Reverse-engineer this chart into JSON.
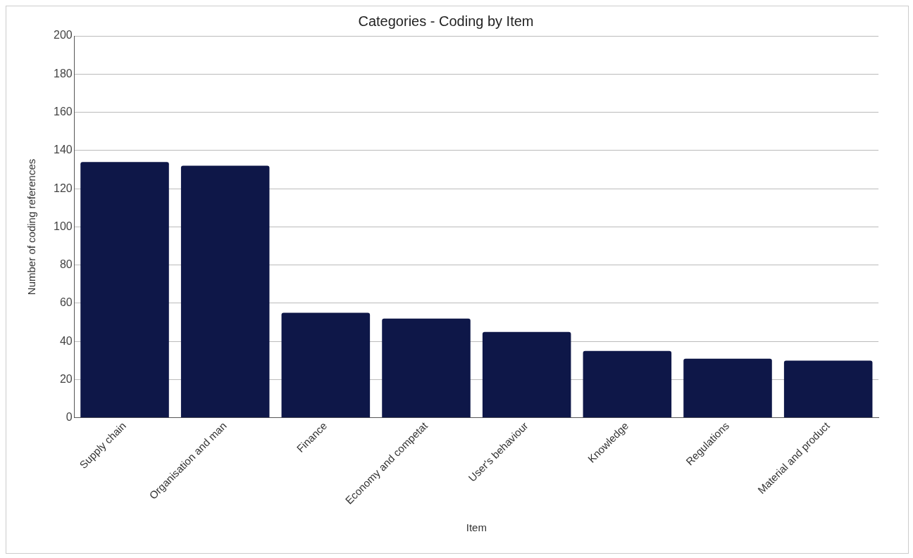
{
  "chart_data": {
    "type": "bar",
    "title": "Categories - Coding by Item",
    "xlabel": "Item",
    "ylabel": "Number of coding references",
    "categories": [
      "Supply chain",
      "Organisation and man",
      "Finance",
      "Economy and competat",
      "User's behaviour",
      "Knowledge",
      "Regulations",
      "Material and product"
    ],
    "values": [
      134,
      132,
      55,
      52,
      45,
      35,
      31,
      30
    ],
    "color": "#0e1748",
    "ylim": [
      0,
      200
    ],
    "yticks": [
      0,
      20,
      40,
      60,
      80,
      100,
      120,
      140,
      160,
      180,
      200
    ],
    "grid": "y",
    "legend": false
  }
}
